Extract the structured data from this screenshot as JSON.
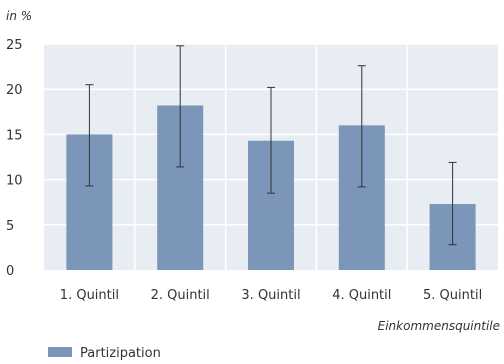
{
  "chart_data": {
    "type": "bar",
    "ylabel": "in %",
    "xlabel": "Einkommensquintile",
    "categories": [
      "1. Quintil",
      "2. Quintil",
      "3. Quintil",
      "4. Quintil",
      "5. Quintil"
    ],
    "series": [
      {
        "name": "Partizipation",
        "values": [
          15.0,
          18.2,
          14.3,
          16.0,
          7.3
        ],
        "error_low": [
          9.3,
          11.4,
          8.5,
          9.2,
          2.8
        ],
        "error_high": [
          20.5,
          24.8,
          20.2,
          22.6,
          11.9
        ]
      }
    ],
    "ylim": [
      0,
      25
    ],
    "yticks": [
      0,
      5,
      10,
      15,
      20,
      25
    ],
    "grid": true,
    "legend_position": "bottom-left",
    "colors": {
      "bar": "#7b96b8",
      "plot_background": "#e8edf4",
      "gridline": "#ffffff",
      "error_bar": "#333333"
    }
  }
}
